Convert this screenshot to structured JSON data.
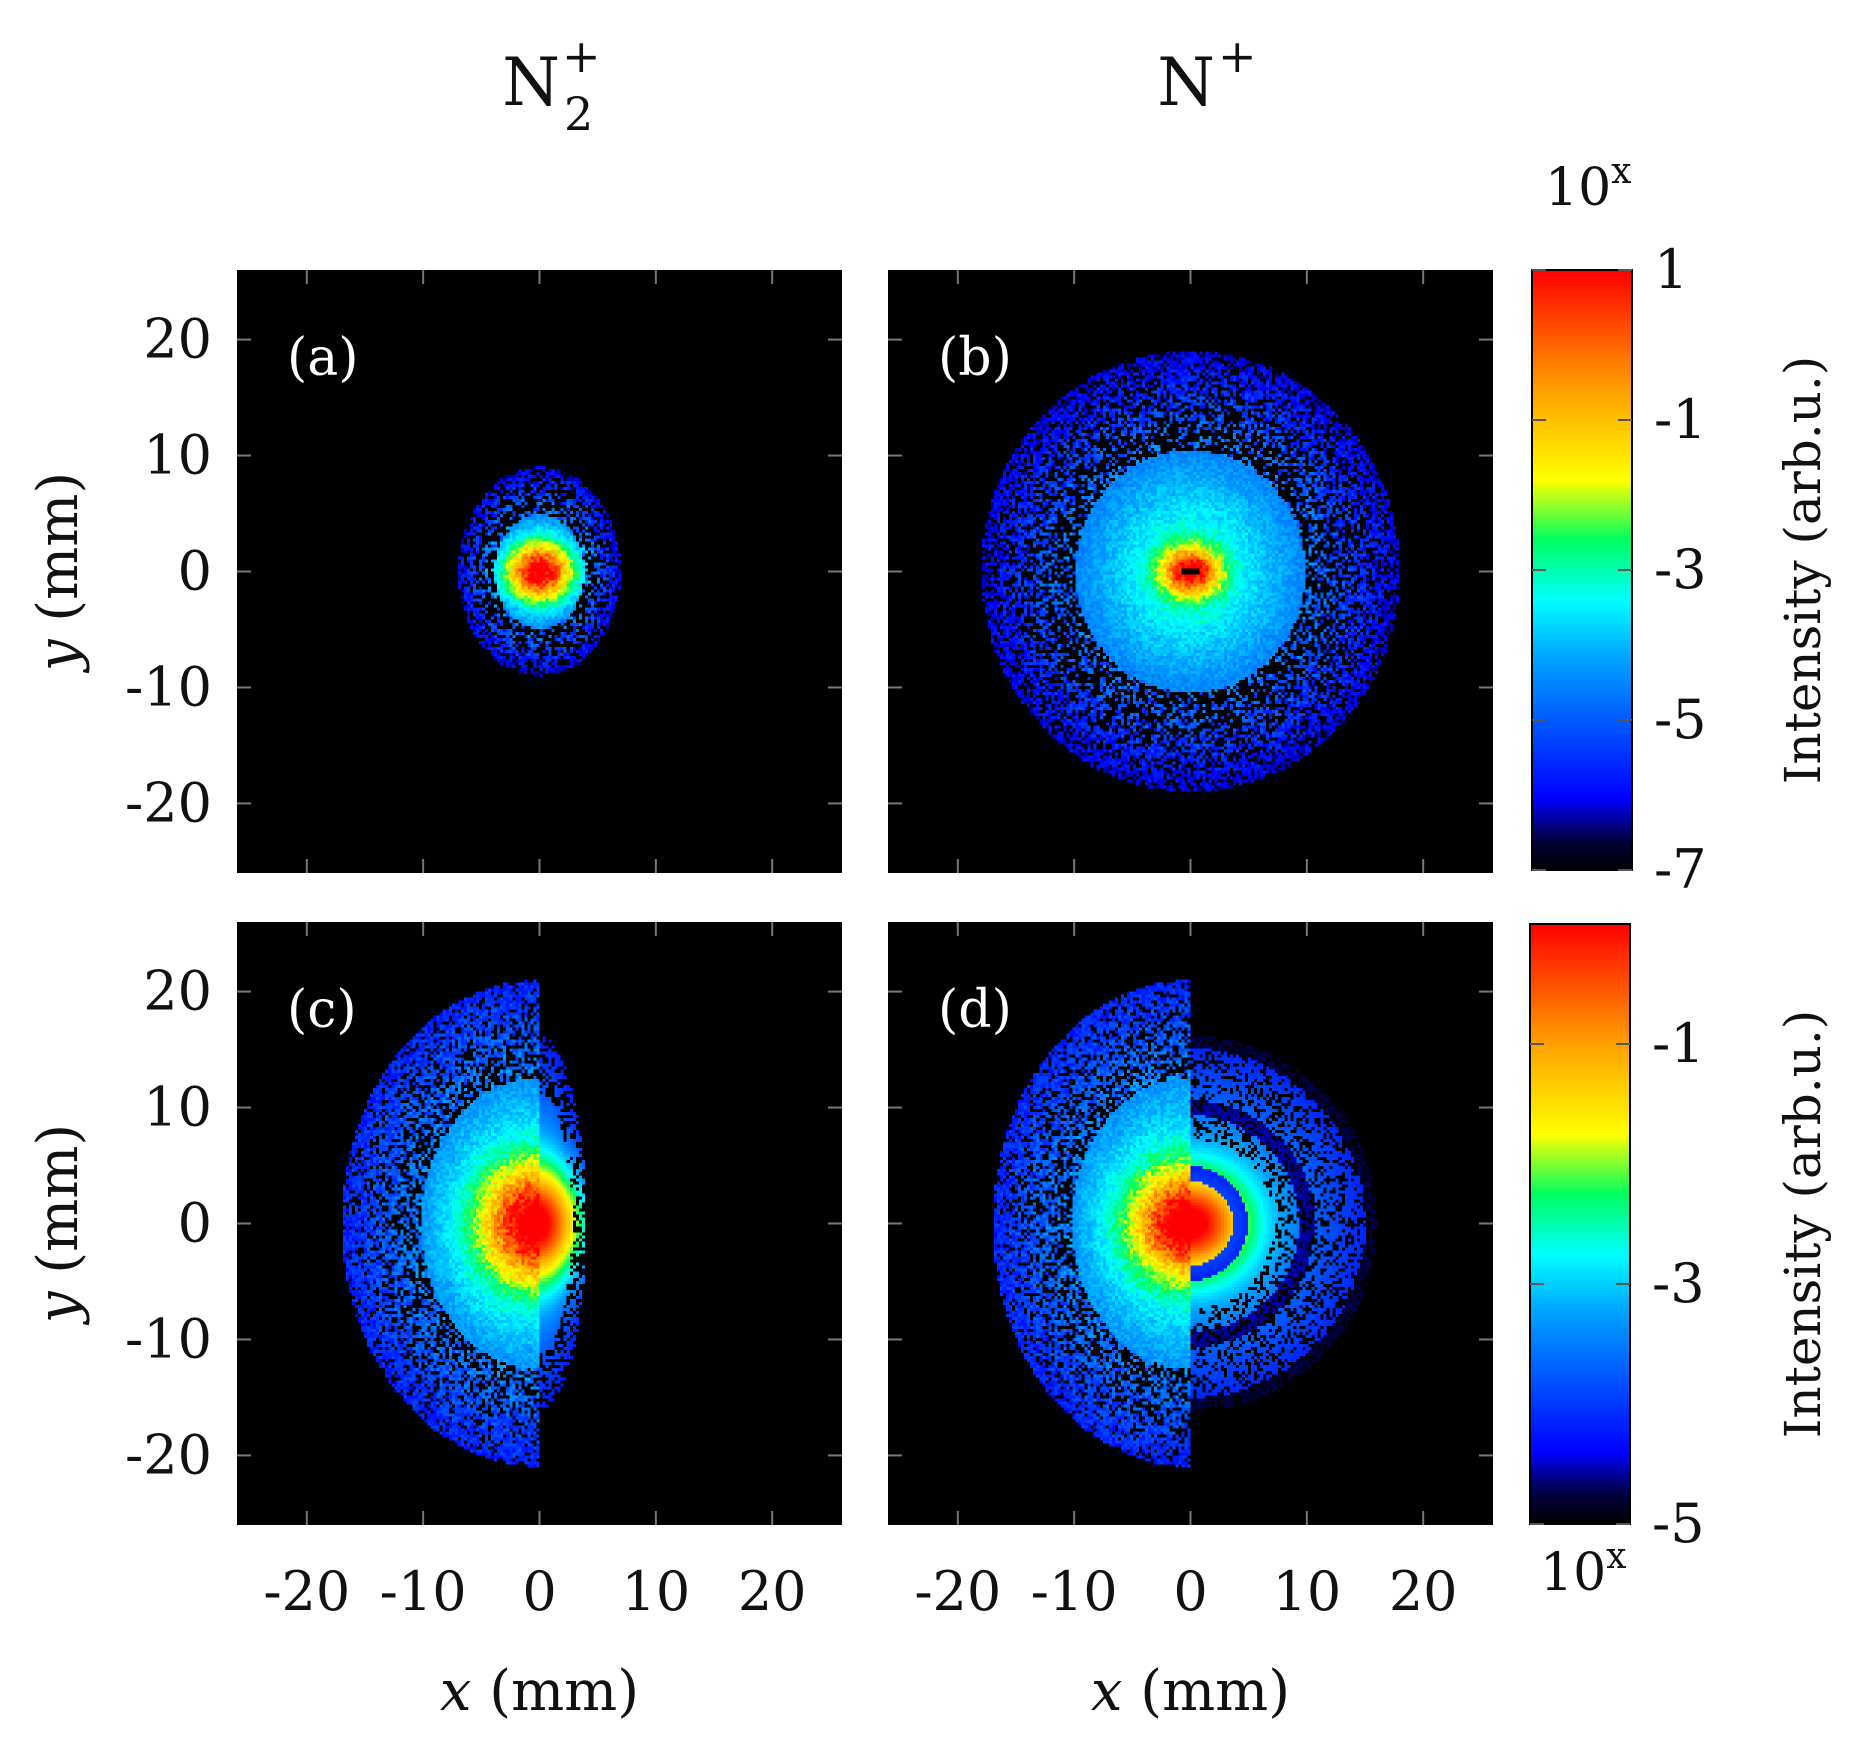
{
  "figure": {
    "column_titles": {
      "left": {
        "base": "N",
        "sub": "2",
        "sup": "+"
      },
      "right": {
        "base": "N",
        "sup": "+"
      }
    }
  },
  "chart_data": [
    {
      "type": "heatmap",
      "panel_label": "(a)",
      "species": "N2+",
      "xlabel_var": "x",
      "xlabel_unit": "(mm)",
      "ylabel_var": "y",
      "ylabel_unit": "(mm)",
      "xlim": [
        -26,
        26
      ],
      "ylim": [
        -26,
        26
      ],
      "xticks": [
        -20,
        -10,
        0,
        10,
        20
      ],
      "yticks": [
        -20,
        -10,
        0,
        10,
        20
      ],
      "xtick_labels": [
        "-20",
        "-10",
        "0",
        "10",
        "20"
      ],
      "ytick_labels": [
        "-20",
        "-10",
        "0",
        "10",
        "20"
      ],
      "colorbar": "top",
      "distribution": {
        "shape": "compact-ellipse",
        "rx_mm": 7,
        "ry_mm": 9,
        "core_rx_mm": 1.5,
        "core_ry_mm": 1.2,
        "half": "full"
      }
    },
    {
      "type": "heatmap",
      "panel_label": "(b)",
      "species": "N+",
      "xlabel_var": "x",
      "xlabel_unit": "(mm)",
      "ylabel_var": "y",
      "ylabel_unit": "(mm)",
      "xlim": [
        -26,
        26
      ],
      "ylim": [
        -26,
        26
      ],
      "xticks": [
        -20,
        -10,
        0,
        10,
        20
      ],
      "yticks": [
        -20,
        -10,
        0,
        10,
        20
      ],
      "xtick_labels": [
        "-20",
        "-10",
        "0",
        "10",
        "20"
      ],
      "ytick_labels": [
        "-20",
        "-10",
        "0",
        "10",
        "20"
      ],
      "colorbar": "top",
      "distribution": {
        "shape": "broad-disk",
        "rx_mm": 18,
        "ry_mm": 19,
        "core_rx_mm": 1.2,
        "core_ry_mm": 1.0,
        "half": "full"
      }
    },
    {
      "type": "heatmap",
      "panel_label": "(c)",
      "species": "N2+",
      "xlabel_var": "x",
      "xlabel_unit": "(mm)",
      "ylabel_var": "y",
      "ylabel_unit": "(mm)",
      "xlim": [
        -26,
        26
      ],
      "ylim": [
        -26,
        26
      ],
      "xticks": [
        -20,
        -10,
        0,
        10,
        20
      ],
      "yticks": [
        -20,
        -10,
        0,
        10,
        20
      ],
      "xtick_labels": [
        "-20",
        "-10",
        "0",
        "10",
        "20"
      ],
      "ytick_labels": [
        "-20",
        "-10",
        "0",
        "10",
        "20"
      ],
      "colorbar": "bottom",
      "distribution": {
        "shape": "half-disk-left",
        "rx_mm": 17,
        "ry_mm": 21,
        "core_rx_mm": 2.2,
        "core_ry_mm": 2.2,
        "right_extent_mm": 4,
        "half": "left"
      }
    },
    {
      "type": "heatmap",
      "panel_label": "(d)",
      "species": "N+",
      "xlabel_var": "x",
      "xlabel_unit": "(mm)",
      "ylabel_var": "y",
      "ylabel_unit": "(mm)",
      "xlim": [
        -26,
        26
      ],
      "ylim": [
        -26,
        26
      ],
      "xticks": [
        -20,
        -10,
        0,
        10,
        20
      ],
      "yticks": [
        -20,
        -10,
        0,
        10,
        20
      ],
      "xtick_labels": [
        "-20",
        "-10",
        "0",
        "10",
        "20"
      ],
      "ytick_labels": [
        "-20",
        "-10",
        "0",
        "10",
        "20"
      ],
      "colorbar": "bottom",
      "distribution": {
        "shape": "half-disk-left-with-right-fringes",
        "rx_mm": 17,
        "ry_mm": 21,
        "core_rx_mm": 2.2,
        "core_ry_mm": 2.0,
        "right_extent_mm": 16,
        "half": "left"
      }
    }
  ],
  "colorbars": {
    "top": {
      "label": "Intensity (arb.u.)",
      "exponent_label_base": "10",
      "exponent_label_sup": "x",
      "range": [
        -7,
        1
      ],
      "ticks": [
        1,
        -1,
        -3,
        -5,
        -7
      ],
      "tick_labels": [
        "1",
        "-1",
        "-3",
        "-5",
        "-7"
      ]
    },
    "bottom": {
      "label": "Intensity (arb.u.)",
      "exponent_label_base": "10",
      "exponent_label_sup": "x",
      "range": [
        -5,
        0
      ],
      "ticks": [
        -1,
        -3,
        -5
      ],
      "tick_labels": [
        "-1",
        "-3",
        "-5"
      ]
    }
  },
  "colormap": {
    "name": "jet-black",
    "stops": [
      {
        "pos": 0.0,
        "color": "#000000"
      },
      {
        "pos": 0.05,
        "color": "#000040"
      },
      {
        "pos": 0.12,
        "color": "#0000ff"
      },
      {
        "pos": 0.35,
        "color": "#00a0ff"
      },
      {
        "pos": 0.45,
        "color": "#00ffff"
      },
      {
        "pos": 0.55,
        "color": "#00ff60"
      },
      {
        "pos": 0.65,
        "color": "#ffff00"
      },
      {
        "pos": 0.8,
        "color": "#ffa000"
      },
      {
        "pos": 1.0,
        "color": "#ff0000"
      }
    ]
  }
}
